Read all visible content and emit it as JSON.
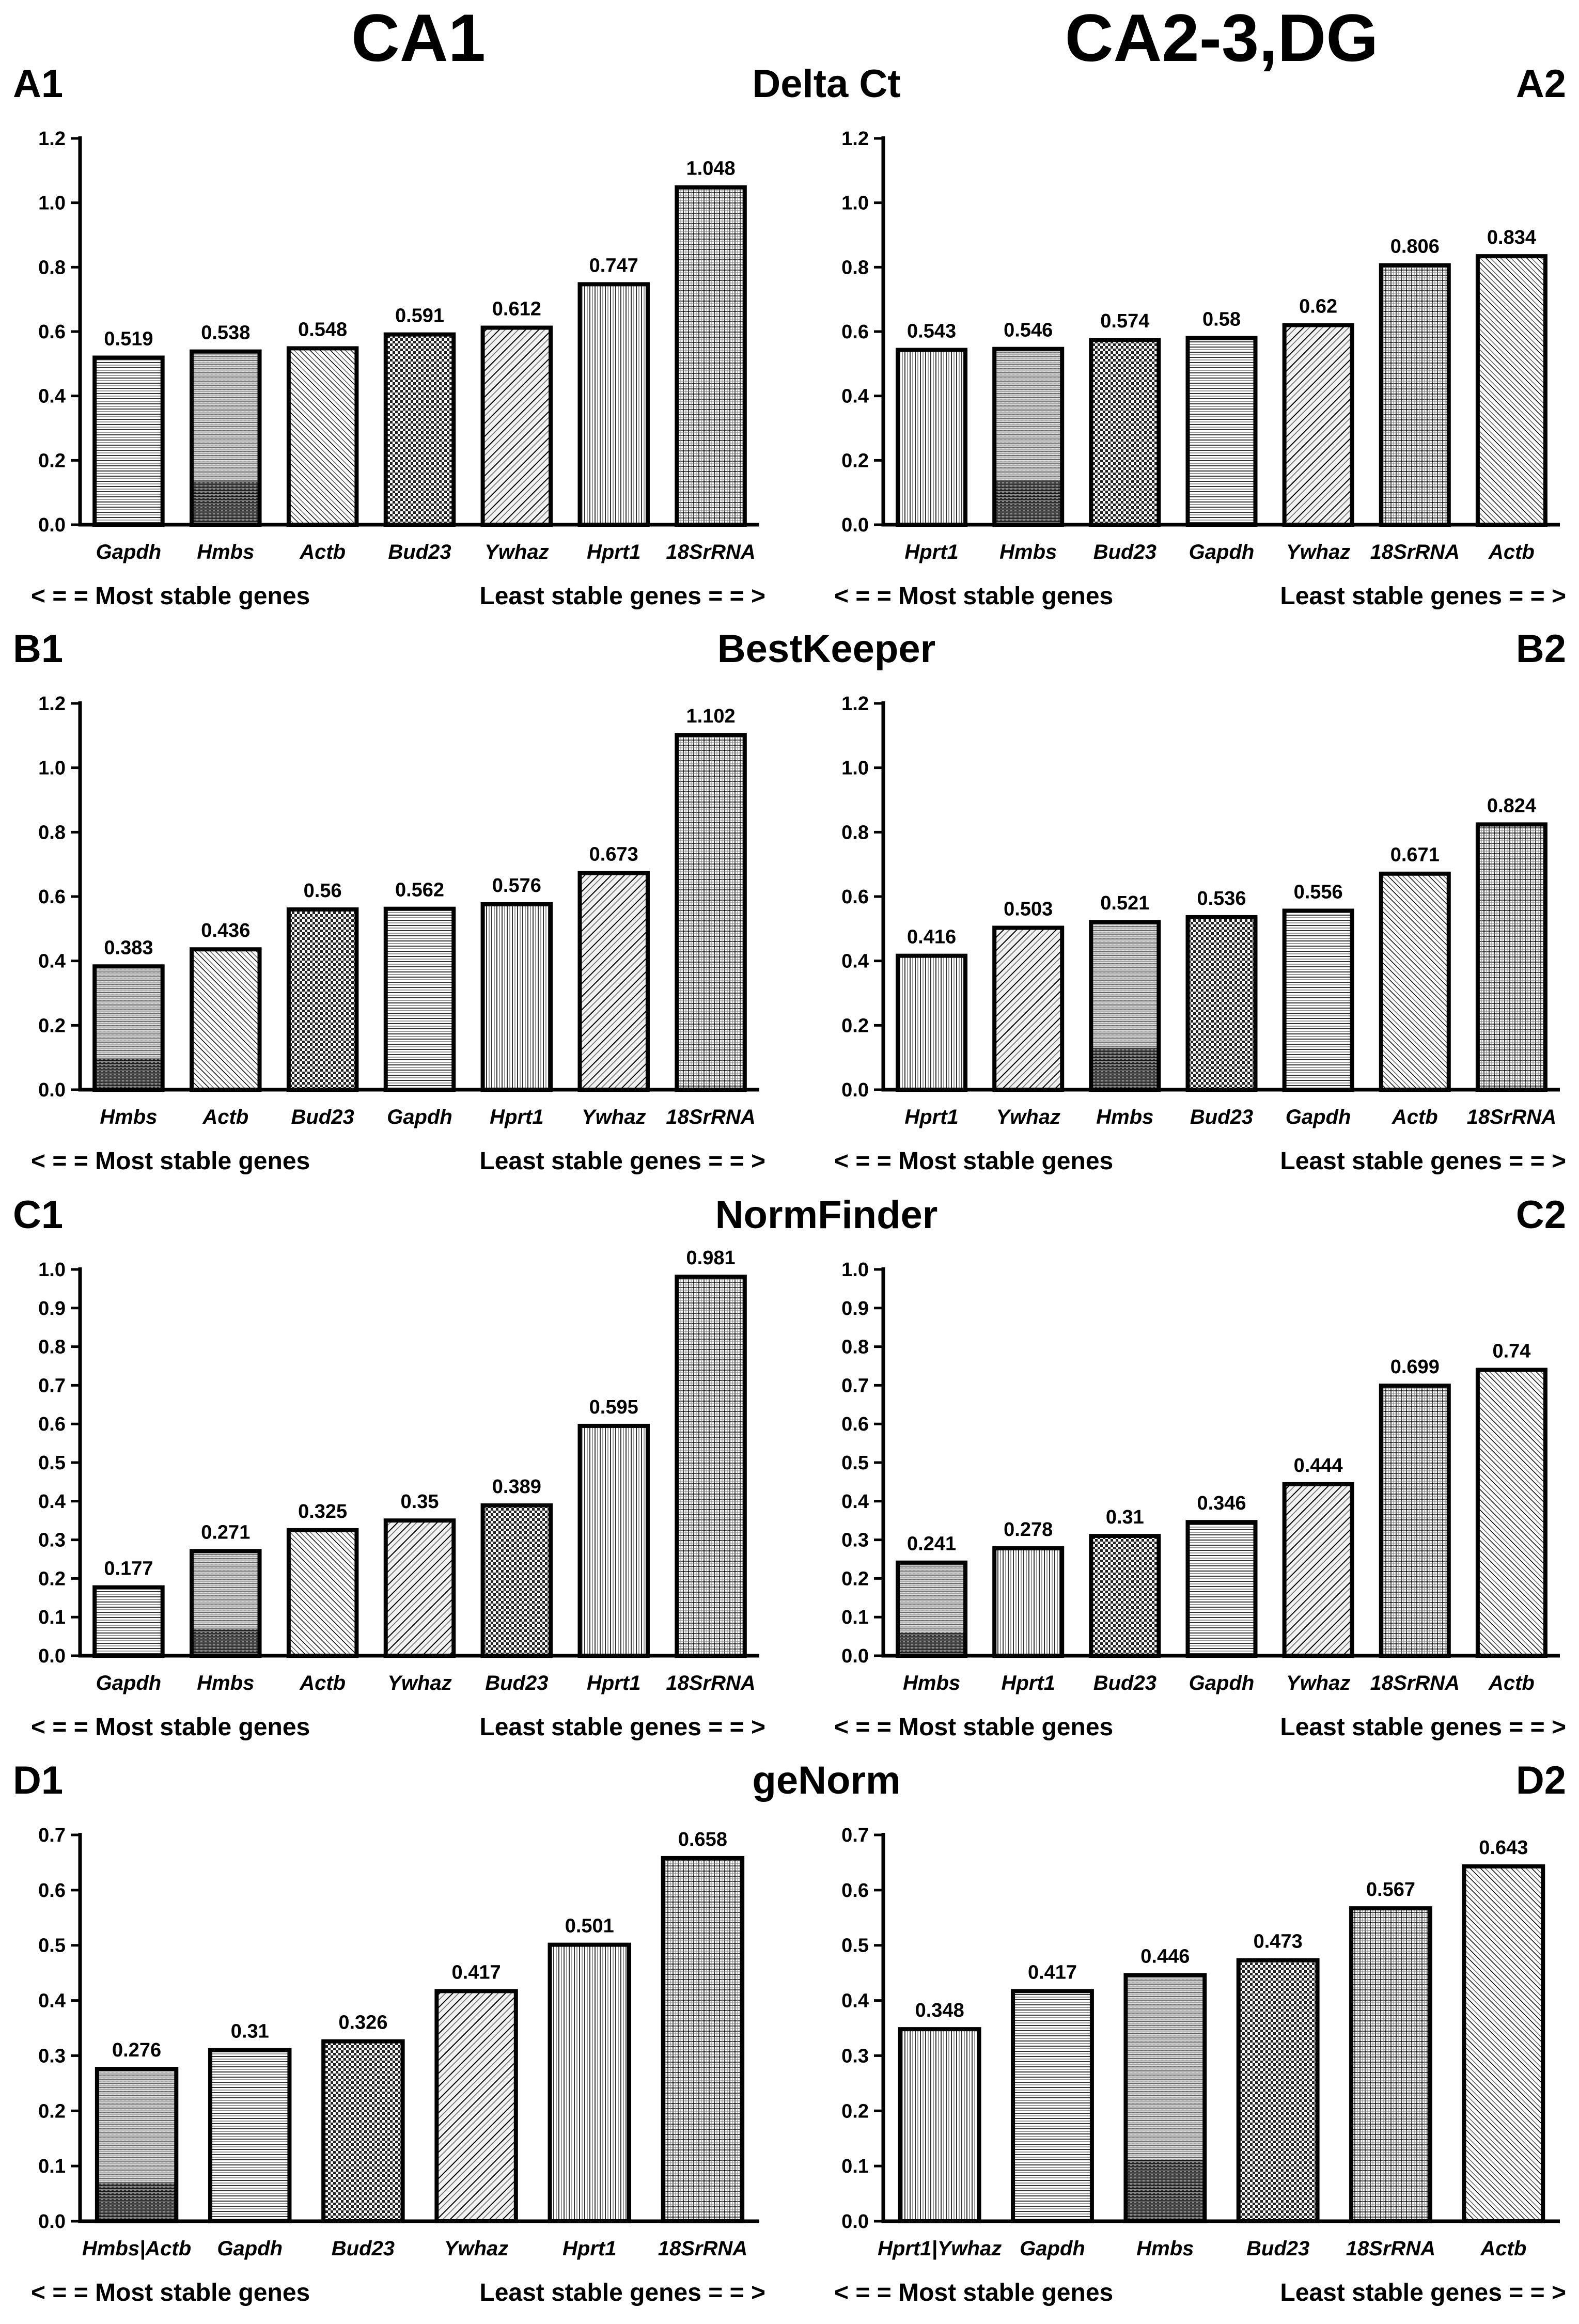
{
  "columns": [
    "CA1",
    "CA2-3,DG"
  ],
  "rows": [
    {
      "method": "Delta Ct",
      "left_label": "A1",
      "right_label": "A2"
    },
    {
      "method": "BestKeeper",
      "left_label": "B1",
      "right_label": "B2"
    },
    {
      "method": "NormFinder",
      "left_label": "C1",
      "right_label": "C2"
    },
    {
      "method": "geNorm",
      "left_label": "D1",
      "right_label": "D2"
    }
  ],
  "footer": {
    "left": "< = =  Most stable genes",
    "right": "Least stable genes  = = >"
  },
  "gene_patterns": {
    "Gapdh": "hlines",
    "Hmbs": "hgrad",
    "Actb": "diagfine",
    "Bud23": "dots",
    "Ywhaz": "diag",
    "Hprt1": "vlines",
    "18SrRNA": "grid",
    "Hmbs|Actb": "hgrad",
    "Hprt1|Ywhaz": "vlines"
  },
  "chart_data": [
    {
      "id": "A1",
      "type": "bar",
      "title": "Delta Ct",
      "region": "CA1",
      "categories": [
        "Gapdh",
        "Hmbs",
        "Actb",
        "Bud23",
        "Ywhaz",
        "Hprt1",
        "18SrRNA"
      ],
      "values": [
        0.519,
        0.538,
        0.548,
        0.591,
        0.612,
        0.747,
        1.048
      ],
      "labels": [
        "0.519",
        "0.538",
        "0.548",
        "0.591",
        "0.612",
        "0.747",
        "1.048"
      ],
      "ylim": [
        0,
        1.2
      ],
      "yticks": [
        "0.0",
        "0.2",
        "0.4",
        "0.6",
        "0.8",
        "1.0",
        "1.2"
      ],
      "xlabel": "",
      "ylabel": ""
    },
    {
      "id": "A2",
      "type": "bar",
      "title": "Delta Ct",
      "region": "CA2-3,DG",
      "categories": [
        "Hprt1",
        "Hmbs",
        "Bud23",
        "Gapdh",
        "Ywhaz",
        "18SrRNA",
        "Actb"
      ],
      "values": [
        0.543,
        0.546,
        0.574,
        0.58,
        0.62,
        0.806,
        0.834
      ],
      "labels": [
        "0.543",
        "0.546",
        "0.574",
        "0.58",
        "0.62",
        "0.806",
        "0.834"
      ],
      "ylim": [
        0,
        1.2
      ],
      "yticks": [
        "0.0",
        "0.2",
        "0.4",
        "0.6",
        "0.8",
        "1.0",
        "1.2"
      ],
      "xlabel": "",
      "ylabel": ""
    },
    {
      "id": "B1",
      "type": "bar",
      "title": "BestKeeper",
      "region": "CA1",
      "categories": [
        "Hmbs",
        "Actb",
        "Bud23",
        "Gapdh",
        "Hprt1",
        "Ywhaz",
        "18SrRNA"
      ],
      "values": [
        0.383,
        0.436,
        0.56,
        0.562,
        0.576,
        0.673,
        1.102
      ],
      "labels": [
        "0.383",
        "0.436",
        "0.56",
        "0.562",
        "0.576",
        "0.673",
        "1.102"
      ],
      "ylim": [
        0,
        1.2
      ],
      "yticks": [
        "0.0",
        "0.2",
        "0.4",
        "0.6",
        "0.8",
        "1.0",
        "1.2"
      ],
      "xlabel": "",
      "ylabel": ""
    },
    {
      "id": "B2",
      "type": "bar",
      "title": "BestKeeper",
      "region": "CA2-3,DG",
      "categories": [
        "Hprt1",
        "Ywhaz",
        "Hmbs",
        "Bud23",
        "Gapdh",
        "Actb",
        "18SrRNA"
      ],
      "values": [
        0.416,
        0.503,
        0.521,
        0.536,
        0.556,
        0.671,
        0.824
      ],
      "labels": [
        "0.416",
        "0.503",
        "0.521",
        "0.536",
        "0.556",
        "0.671",
        "0.824"
      ],
      "ylim": [
        0,
        1.2
      ],
      "yticks": [
        "0.0",
        "0.2",
        "0.4",
        "0.6",
        "0.8",
        "1.0",
        "1.2"
      ],
      "xlabel": "",
      "ylabel": ""
    },
    {
      "id": "C1",
      "type": "bar",
      "title": "NormFinder",
      "region": "CA1",
      "categories": [
        "Gapdh",
        "Hmbs",
        "Actb",
        "Ywhaz",
        "Bud23",
        "Hprt1",
        "18SrRNA"
      ],
      "values": [
        0.177,
        0.271,
        0.325,
        0.35,
        0.389,
        0.595,
        0.981
      ],
      "labels": [
        "0.177",
        "0.271",
        "0.325",
        "0.35",
        "0.389",
        "0.595",
        "0.981"
      ],
      "ylim": [
        0,
        1.0
      ],
      "yticks": [
        "0.0",
        "0.1",
        "0.2",
        "0.3",
        "0.4",
        "0.5",
        "0.6",
        "0.7",
        "0.8",
        "0.9",
        "1.0"
      ],
      "xlabel": "",
      "ylabel": ""
    },
    {
      "id": "C2",
      "type": "bar",
      "title": "NormFinder",
      "region": "CA2-3,DG",
      "categories": [
        "Hmbs",
        "Hprt1",
        "Bud23",
        "Gapdh",
        "Ywhaz",
        "18SrRNA",
        "Actb"
      ],
      "values": [
        0.241,
        0.278,
        0.31,
        0.346,
        0.444,
        0.699,
        0.74
      ],
      "labels": [
        "0.241",
        "0.278",
        "0.31",
        "0.346",
        "0.444",
        "0.699",
        "0.74"
      ],
      "ylim": [
        0,
        1.0
      ],
      "yticks": [
        "0.0",
        "0.1",
        "0.2",
        "0.3",
        "0.4",
        "0.5",
        "0.6",
        "0.7",
        "0.8",
        "0.9",
        "1.0"
      ],
      "xlabel": "",
      "ylabel": ""
    },
    {
      "id": "D1",
      "type": "bar",
      "title": "geNorm",
      "region": "CA1",
      "categories": [
        "Hmbs|Actb",
        "Gapdh",
        "Bud23",
        "Ywhaz",
        "Hprt1",
        "18SrRNA"
      ],
      "values": [
        0.276,
        0.31,
        0.326,
        0.417,
        0.501,
        0.658
      ],
      "labels": [
        "0.276",
        "0.31",
        "0.326",
        "0.417",
        "0.501",
        "0.658"
      ],
      "ylim": [
        0,
        0.7
      ],
      "yticks": [
        "0.0",
        "0.1",
        "0.2",
        "0.3",
        "0.4",
        "0.5",
        "0.6",
        "0.7"
      ],
      "xlabel": "",
      "ylabel": ""
    },
    {
      "id": "D2",
      "type": "bar",
      "title": "geNorm",
      "region": "CA2-3,DG",
      "categories": [
        "Hprt1|Ywhaz",
        "Gapdh",
        "Hmbs",
        "Bud23",
        "18SrRNA",
        "Actb"
      ],
      "values": [
        0.348,
        0.417,
        0.446,
        0.473,
        0.567,
        0.643
      ],
      "labels": [
        "0.348",
        "0.417",
        "0.446",
        "0.473",
        "0.567",
        "0.643"
      ],
      "ylim": [
        0,
        0.7
      ],
      "yticks": [
        "0.0",
        "0.1",
        "0.2",
        "0.3",
        "0.4",
        "0.5",
        "0.6",
        "0.7"
      ],
      "xlabel": "",
      "ylabel": ""
    }
  ]
}
